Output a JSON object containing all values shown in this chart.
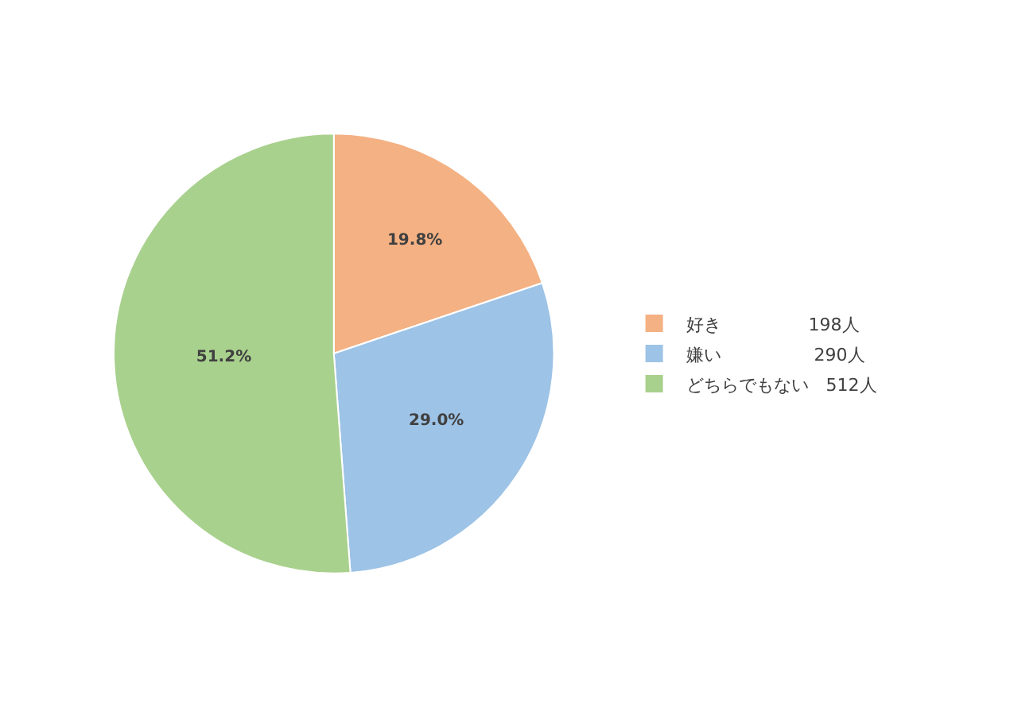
{
  "chart_data": {
    "type": "pie",
    "categories": [
      "好き　　　　　198人",
      "嫌い　　　　　 290人",
      "どちらでもない　512人"
    ],
    "values": [
      19.8,
      29.0,
      51.2
    ],
    "value_labels": [
      "19.8%",
      "29.0%",
      "51.2%"
    ],
    "colors": [
      "#f4b183",
      "#9dc3e6",
      "#a9d18e"
    ],
    "legend": "right"
  }
}
